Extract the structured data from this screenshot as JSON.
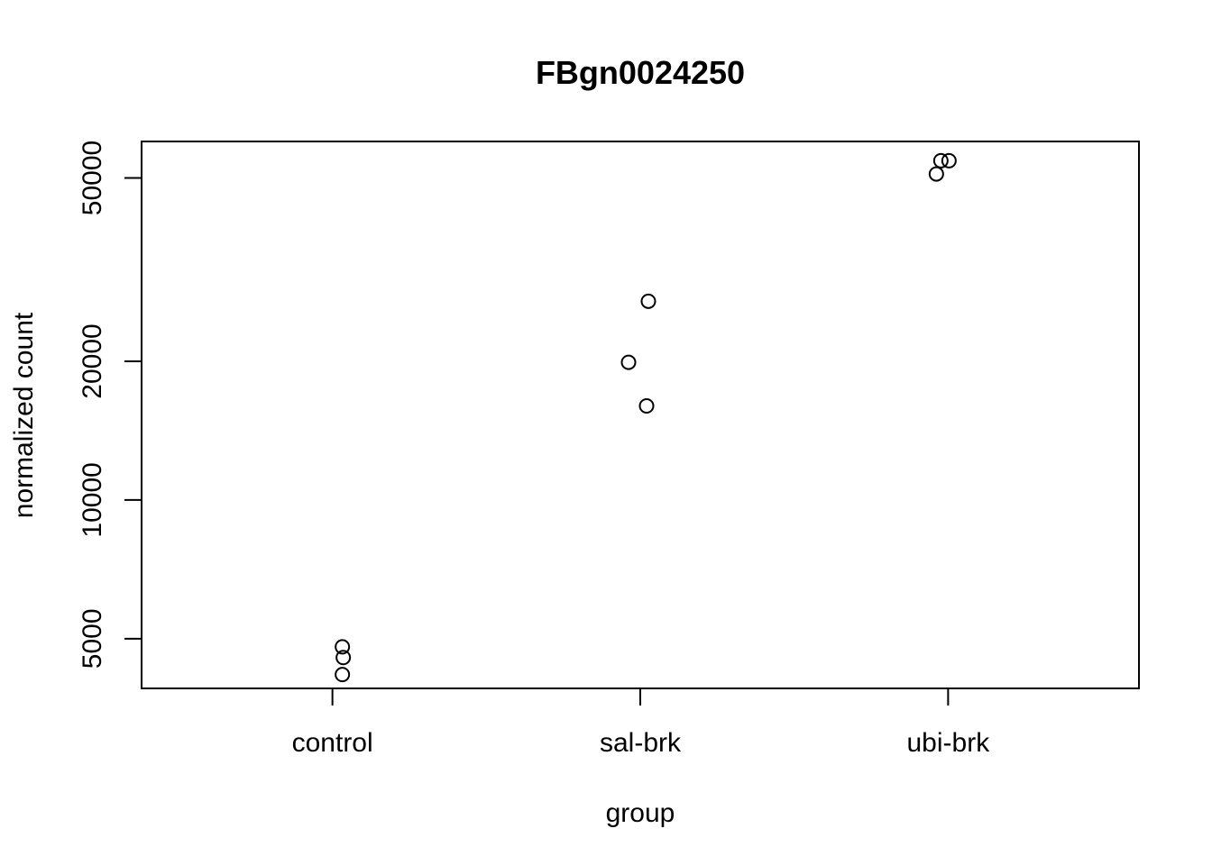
{
  "chart_data": {
    "type": "scatter",
    "title": "FBgn0024250",
    "xlabel": "group",
    "ylabel": "normalized count",
    "y_scale": "log",
    "ylim": [
      3900,
      60000
    ],
    "y_ticks": [
      5000,
      10000,
      20000,
      50000
    ],
    "y_tick_labels": [
      "5000",
      "10000",
      "20000",
      "50000"
    ],
    "categories": [
      "control",
      "sal-brk",
      "ubi-brk"
    ],
    "points": [
      {
        "group": "control",
        "value": 4800
      },
      {
        "group": "control",
        "value": 4550
      },
      {
        "group": "control",
        "value": 4180
      },
      {
        "group": "sal-brk",
        "value": 27000
      },
      {
        "group": "sal-brk",
        "value": 19900
      },
      {
        "group": "sal-brk",
        "value": 16000
      },
      {
        "group": "ubi-brk",
        "value": 54500
      },
      {
        "group": "ubi-brk",
        "value": 54500
      },
      {
        "group": "ubi-brk",
        "value": 51000
      }
    ],
    "grid": false,
    "legend": "none"
  }
}
